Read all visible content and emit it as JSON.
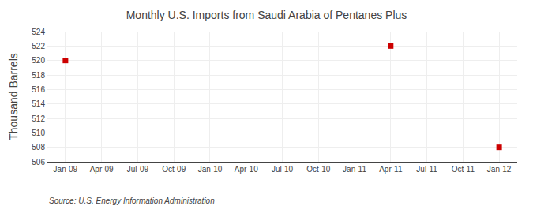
{
  "chart_data": {
    "type": "scatter",
    "title": "Monthly U.S. Imports from Saudi Arabia of Pentanes Plus",
    "ylabel": "Thousand Barrels",
    "annotations": [
      "Source: U.S. Energy Information Administration"
    ],
    "categories": [
      "Jan-09",
      "Apr-09",
      "Jul-09",
      "Oct-09",
      "Jan-10",
      "Apr-10",
      "Jul-10",
      "Oct-10",
      "Jan-11",
      "Apr-11",
      "Jul-11",
      "Oct-11",
      "Jan-12"
    ],
    "values": [
      520,
      null,
      null,
      null,
      null,
      null,
      null,
      null,
      null,
      522,
      null,
      null,
      508
    ],
    "color": "#cc0000",
    "marker": "square",
    "ylim": [
      506,
      524
    ],
    "yticks": [
      506,
      508,
      510,
      512,
      514,
      516,
      518,
      520,
      522,
      524
    ],
    "grid": true
  }
}
